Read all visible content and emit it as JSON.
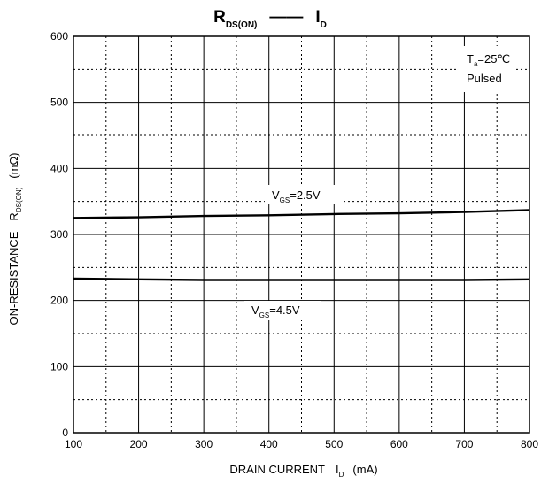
{
  "chart_data": {
    "type": "line",
    "title": {
      "main": "R",
      "main_sub": "DS(ON)",
      "separator": "——",
      "right": "I",
      "right_sub": "D"
    },
    "xlabel": {
      "text": "DRAIN CURRENT",
      "symbol": "I",
      "symbol_sub": "D",
      "unit": "(mA)"
    },
    "ylabel": {
      "text": "ON-RESISTANCE",
      "symbol": "R",
      "symbol_sub": "DS(ON)",
      "unit": "(mΩ)"
    },
    "xlim": [
      100,
      800
    ],
    "ylim": [
      0,
      600
    ],
    "x_ticks": [
      "100",
      "200",
      "300",
      "400",
      "500",
      "600",
      "700",
      "800"
    ],
    "y_ticks": [
      "0",
      "100",
      "200",
      "300",
      "400",
      "500",
      "600"
    ],
    "grid": {
      "solid_x": [
        100,
        200,
        300,
        400,
        500,
        600,
        700,
        800
      ],
      "dotted_x": [
        150,
        250,
        350,
        450,
        550,
        650,
        750
      ],
      "solid_y": [
        0,
        100,
        200,
        300,
        400,
        500,
        600
      ],
      "dotted_y": [
        50,
        150,
        250,
        350,
        450,
        550
      ]
    },
    "series": [
      {
        "label_prefix": "V",
        "label_sub": "GS",
        "label_suffix": "=2.5V",
        "x": [
          100,
          200,
          300,
          400,
          500,
          600,
          700,
          800
        ],
        "y": [
          325,
          326,
          328,
          329,
          331,
          332,
          334,
          337
        ]
      },
      {
        "label_prefix": "V",
        "label_sub": "GS",
        "label_suffix": "=4.5V",
        "x": [
          100,
          200,
          300,
          400,
          500,
          600,
          700,
          800
        ],
        "y": [
          233,
          232,
          231,
          231,
          231,
          231,
          231,
          232
        ]
      }
    ],
    "conditions": {
      "temp_prefix": "T",
      "temp_sub": "a",
      "temp_suffix": "=25℃",
      "mode": "Pulsed"
    },
    "colors": {
      "line": "#000000",
      "grid": "#000000",
      "background": "#ffffff"
    }
  }
}
